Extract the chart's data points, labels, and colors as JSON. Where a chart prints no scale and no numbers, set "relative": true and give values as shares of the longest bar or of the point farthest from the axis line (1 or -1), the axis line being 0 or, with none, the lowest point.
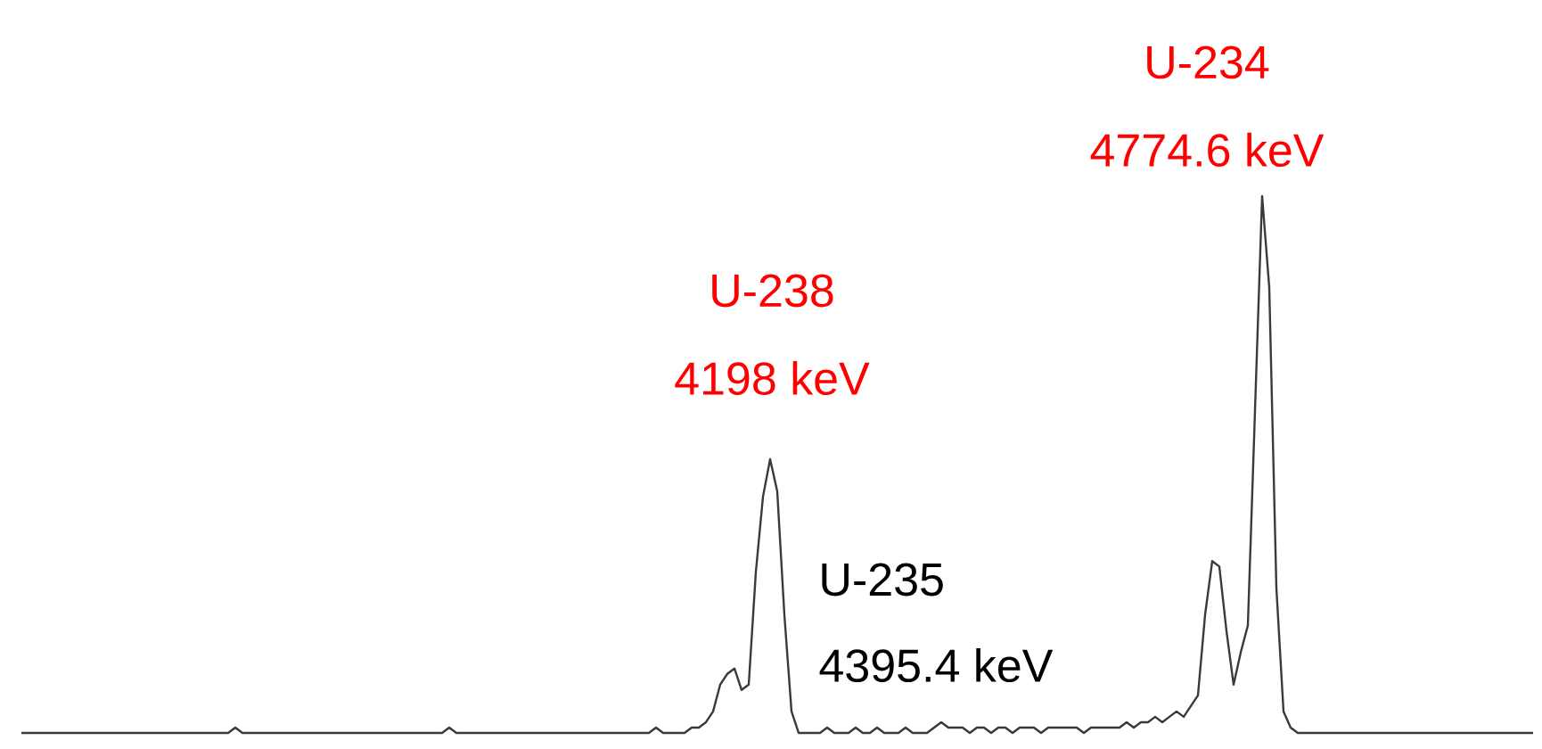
{
  "chart_data": {
    "type": "line",
    "relative": true,
    "color": "#3a3a3a",
    "categories": [
      null,
      null,
      null,
      null,
      null,
      null,
      null,
      null,
      null,
      null,
      null,
      null,
      null,
      null,
      null,
      null,
      null,
      null,
      null,
      null,
      null,
      null,
      null,
      null,
      null,
      null,
      null,
      null,
      null,
      null,
      null,
      null,
      null,
      null,
      null,
      null,
      null,
      null,
      null,
      null,
      null,
      null,
      null,
      null,
      null,
      null,
      null,
      null,
      null,
      null,
      null,
      null,
      null,
      null,
      null,
      null,
      null,
      null,
      null,
      null,
      null,
      null,
      null,
      null,
      null,
      null,
      null,
      null,
      null,
      null,
      null,
      null,
      null,
      null,
      null,
      null,
      null,
      null,
      null,
      null,
      null,
      null,
      null,
      null,
      null,
      null,
      null,
      null,
      null,
      null,
      null,
      null,
      null,
      null,
      null,
      null,
      null,
      null,
      null,
      null,
      null,
      null,
      null,
      null,
      null,
      null,
      null,
      null,
      null,
      null,
      null,
      null,
      null,
      null,
      null,
      null,
      null,
      null,
      null,
      null,
      null,
      null,
      null,
      null,
      null,
      null,
      null,
      null,
      null,
      null,
      null,
      null,
      null,
      null,
      null,
      null,
      null,
      null,
      null,
      null,
      null,
      null,
      null,
      null,
      null,
      null,
      null,
      null,
      null,
      null,
      null,
      null,
      null,
      null,
      null,
      null,
      null,
      null,
      null,
      null,
      null,
      null,
      null,
      null,
      null,
      null,
      null,
      null,
      null,
      null,
      null,
      null,
      null,
      null,
      null,
      null,
      null,
      null,
      null,
      null,
      null,
      null,
      null,
      null,
      null,
      null,
      null,
      null,
      null,
      null,
      null,
      null,
      null,
      null,
      null,
      null,
      null,
      null,
      null,
      null,
      null,
      null,
      null,
      null,
      null,
      null,
      null,
      null,
      null,
      null,
      null,
      null,
      null
    ],
    "values": [
      0,
      0,
      0,
      0,
      0,
      0,
      0,
      0,
      0,
      0,
      0,
      0,
      0,
      0,
      0,
      0,
      0,
      0,
      0,
      0,
      0,
      0,
      0,
      0,
      0,
      0,
      0,
      0,
      0,
      0,
      0.01,
      0,
      0,
      0,
      0,
      0,
      0,
      0,
      0,
      0,
      0,
      0,
      0,
      0,
      0,
      0,
      0,
      0,
      0,
      0,
      0,
      0,
      0,
      0,
      0,
      0,
      0,
      0,
      0,
      0,
      0.01,
      0,
      0,
      0,
      0,
      0,
      0,
      0,
      0,
      0,
      0,
      0,
      0,
      0,
      0,
      0,
      0,
      0,
      0,
      0,
      0,
      0,
      0,
      0,
      0,
      0,
      0,
      0,
      0,
      0.01,
      0,
      0,
      0,
      0,
      0.01,
      0.01,
      0.02,
      0.04,
      0.09,
      0.11,
      0.12,
      0.08,
      0.09,
      0.3,
      0.44,
      0.51,
      0.45,
      0.22,
      0.04,
      0,
      0,
      0,
      0,
      0.01,
      0,
      0,
      0,
      0.01,
      0,
      0,
      0.01,
      0,
      0,
      0,
      0.01,
      0,
      0,
      0,
      0.01,
      0.02,
      0.01,
      0.01,
      0.01,
      0,
      0.01,
      0.01,
      0,
      0.01,
      0.01,
      0,
      0.01,
      0.01,
      0.01,
      0,
      0.01,
      0.01,
      0.01,
      0.01,
      0.01,
      0,
      0.01,
      0.01,
      0.01,
      0.01,
      0.01,
      0.02,
      0.01,
      0.02,
      0.02,
      0.03,
      0.02,
      0.03,
      0.04,
      0.03,
      0.05,
      0.07,
      0.22,
      0.32,
      0.31,
      0.19,
      0.09,
      0.15,
      0.2,
      0.6,
      1.0,
      0.83,
      0.27,
      0.04,
      0.01,
      0,
      0,
      0,
      0,
      0,
      0,
      0,
      0,
      0,
      0,
      0,
      0,
      0,
      0,
      0,
      0,
      0,
      0,
      0,
      0,
      0,
      0,
      0,
      0,
      0,
      0,
      0,
      0,
      0,
      0,
      0,
      0,
      0,
      0
    ],
    "annotations": [
      "U-238",
      "4198 keV",
      "U-234",
      "4774.6 keV",
      "U-235",
      "4395.4 keV"
    ]
  }
}
